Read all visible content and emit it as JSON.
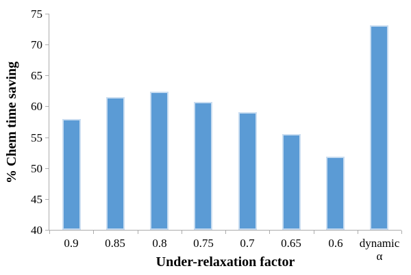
{
  "chart_data": {
    "type": "bar",
    "title": "",
    "xlabel": "Under-relaxation factor",
    "ylabel": "% Chem time saving",
    "categories": [
      "0.9",
      "0.85",
      "0.8",
      "0.75",
      "0.7",
      "0.65",
      "0.6",
      "dynamic\nα"
    ],
    "values": [
      57.9,
      61.5,
      62.4,
      60.7,
      59.1,
      55.5,
      51.8,
      73.1
    ],
    "ylim": [
      40,
      75
    ],
    "yticks": [
      40,
      45,
      50,
      55,
      60,
      65,
      70,
      75
    ],
    "grid": false,
    "legend": null,
    "bar_color": "#5b9bd5",
    "bar_border_color": "#c9ddf1",
    "axis_color": "#ababab",
    "text_color": "#000000",
    "background_color": "#ffffff"
  }
}
